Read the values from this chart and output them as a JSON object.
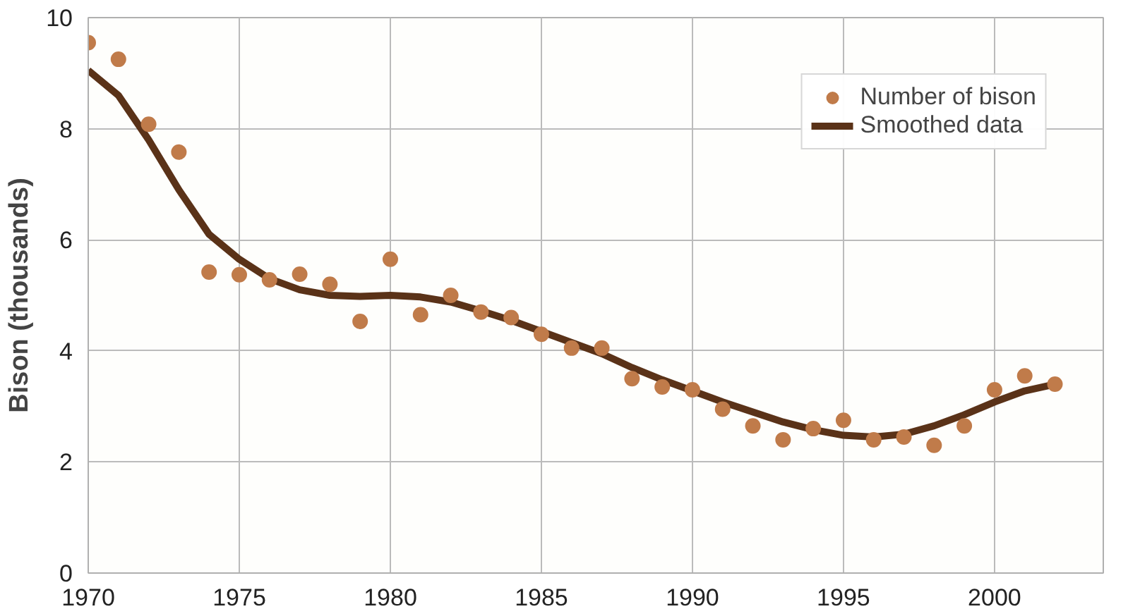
{
  "chart_data": {
    "type": "scatter",
    "ylabel": "Bison (thousands)",
    "x": [
      1970,
      1971,
      1972,
      1973,
      1974,
      1975,
      1976,
      1977,
      1978,
      1979,
      1980,
      1981,
      1982,
      1983,
      1984,
      1985,
      1986,
      1987,
      1988,
      1989,
      1990,
      1991,
      1992,
      1993,
      1994,
      1995,
      1996,
      1997,
      1998,
      1999,
      2000,
      2001,
      2002
    ],
    "series": [
      {
        "name": "Number of bison",
        "color": "#c07b4a",
        "marker": "circle",
        "values": [
          9.55,
          9.25,
          8.08,
          7.58,
          5.42,
          5.37,
          5.28,
          5.38,
          5.2,
          4.53,
          5.65,
          4.65,
          5.0,
          4.7,
          4.6,
          4.3,
          4.05,
          4.05,
          3.5,
          3.35,
          3.3,
          2.95,
          2.65,
          2.4,
          2.6,
          2.75,
          2.4,
          2.45,
          2.3,
          2.65,
          3.3,
          3.55,
          3.4
        ]
      },
      {
        "name": "Smoothed data",
        "type": "line",
        "color": "#5a3218",
        "values": [
          9.05,
          8.6,
          7.8,
          6.9,
          6.1,
          5.65,
          5.3,
          5.1,
          5.0,
          4.98,
          5.0,
          4.97,
          4.88,
          4.72,
          4.55,
          4.35,
          4.15,
          3.95,
          3.7,
          3.48,
          3.28,
          3.08,
          2.9,
          2.72,
          2.58,
          2.48,
          2.45,
          2.5,
          2.65,
          2.85,
          3.08,
          3.28,
          3.4
        ]
      }
    ],
    "xlim": [
      1970,
      2003.6
    ],
    "ylim": [
      0,
      10
    ],
    "xticks": [
      1970,
      1975,
      1980,
      1985,
      1990,
      1995,
      2000
    ],
    "yticks": [
      0,
      2,
      4,
      6,
      8,
      10
    ],
    "grid": true,
    "legend": "top right"
  }
}
